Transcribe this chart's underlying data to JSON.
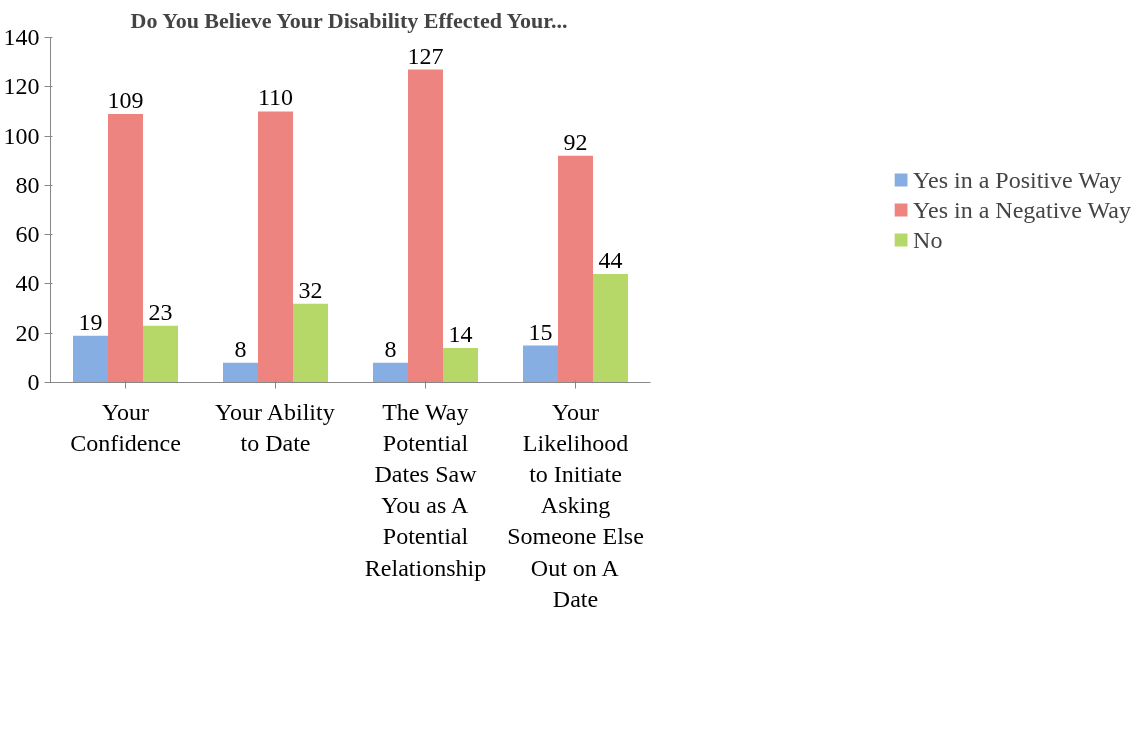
{
  "chart_data": {
    "type": "bar",
    "title": "Do You Believe Your Disability Effected Your...",
    "categories": [
      "Your Confidence",
      "Your Ability to Date",
      "The Way Potential Dates Saw You as A Potential Relationship",
      "Your Likelihood to Initiate Asking Someone Else Out on A Date"
    ],
    "series": [
      {
        "name": "Yes in a Positive Way",
        "color": "#86aee3",
        "values": [
          19,
          8,
          8,
          15
        ]
      },
      {
        "name": "Yes in a Negative Way",
        "color": "#ee8480",
        "values": [
          109,
          110,
          127,
          92
        ]
      },
      {
        "name": "No",
        "color": "#b6d868",
        "values": [
          23,
          32,
          14,
          44
        ]
      }
    ],
    "ylim": [
      0,
      140
    ],
    "yticks": [
      0,
      20,
      40,
      60,
      80,
      100,
      120,
      140
    ],
    "data_labels": true,
    "grid": false,
    "legend": "right"
  }
}
